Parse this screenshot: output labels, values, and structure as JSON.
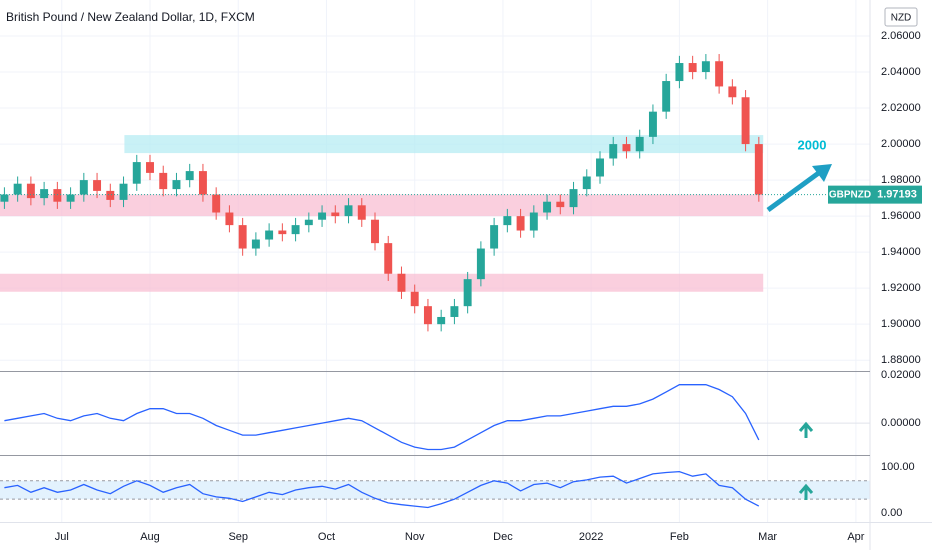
{
  "title": "British Pound / New Zealand Dollar, 1D, FXCM",
  "currency": "NZD",
  "annotation": "2000",
  "last_price": {
    "symbol": "GBPNZD",
    "value": 1.97193
  },
  "chart_data": [
    {
      "type": "candlestick",
      "up_color": "#26a69a",
      "down_color": "#ef5350",
      "x": [
        -0.65,
        -0.5,
        -0.35,
        -0.2,
        -0.05,
        0.1,
        0.25,
        0.4,
        0.55,
        0.7,
        0.85,
        1,
        1.15,
        1.3,
        1.45,
        1.6,
        1.75,
        1.9,
        2.05,
        2.2,
        2.35,
        2.5,
        2.65,
        2.8,
        2.95,
        3.1,
        3.25,
        3.4,
        3.55,
        3.7,
        3.85,
        4,
        4.15,
        4.3,
        4.45,
        4.6,
        4.75,
        4.9,
        5.05,
        5.2,
        5.35,
        5.5,
        5.65,
        5.8,
        5.95,
        6.1,
        6.25,
        6.4,
        6.55,
        6.7,
        6.85,
        7,
        7.15,
        7.3,
        7.45,
        7.6,
        7.75,
        7.9
      ],
      "open": [
        1.968,
        1.972,
        1.978,
        1.97,
        1.975,
        1.968,
        1.972,
        1.98,
        1.974,
        1.969,
        1.978,
        1.99,
        1.984,
        1.975,
        1.98,
        1.985,
        1.972,
        1.962,
        1.955,
        1.942,
        1.947,
        1.952,
        1.95,
        1.955,
        1.958,
        1.962,
        1.96,
        1.966,
        1.958,
        1.945,
        1.928,
        1.918,
        1.91,
        1.9,
        1.904,
        1.91,
        1.925,
        1.942,
        1.955,
        1.96,
        1.952,
        1.962,
        1.968,
        1.965,
        1.975,
        1.982,
        1.992,
        2.0,
        1.996,
        2.004,
        2.018,
        2.035,
        2.045,
        2.04,
        2.046,
        2.032,
        2.026,
        2.0
      ],
      "high": [
        1.976,
        1.982,
        1.982,
        1.979,
        1.979,
        1.976,
        1.984,
        1.984,
        1.978,
        1.982,
        1.994,
        1.994,
        1.988,
        1.984,
        1.989,
        1.989,
        1.976,
        1.966,
        1.959,
        1.951,
        1.956,
        1.956,
        1.959,
        1.962,
        1.966,
        1.966,
        1.97,
        1.97,
        1.962,
        1.949,
        1.932,
        1.922,
        1.914,
        1.908,
        1.914,
        1.929,
        1.946,
        1.959,
        1.964,
        1.964,
        1.966,
        1.972,
        1.972,
        1.979,
        1.986,
        1.996,
        2.004,
        2.004,
        2.008,
        2.022,
        2.039,
        2.049,
        2.049,
        2.05,
        2.05,
        2.036,
        2.03,
        2.004
      ],
      "low": [
        1.964,
        1.968,
        1.966,
        1.966,
        1.964,
        1.964,
        1.968,
        1.97,
        1.965,
        1.965,
        1.974,
        1.98,
        1.971,
        1.971,
        1.976,
        1.968,
        1.958,
        1.951,
        1.938,
        1.938,
        1.943,
        1.946,
        1.946,
        1.951,
        1.954,
        1.956,
        1.956,
        1.954,
        1.941,
        1.924,
        1.914,
        1.906,
        1.896,
        1.896,
        1.9,
        1.906,
        1.921,
        1.938,
        1.951,
        1.948,
        1.948,
        1.958,
        1.961,
        1.961,
        1.971,
        1.978,
        1.988,
        1.992,
        1.992,
        2.0,
        2.014,
        2.031,
        2.036,
        2.036,
        2.028,
        2.022,
        1.996,
        1.968
      ],
      "close": [
        1.972,
        1.978,
        1.97,
        1.975,
        1.968,
        1.972,
        1.98,
        1.974,
        1.969,
        1.978,
        1.99,
        1.984,
        1.975,
        1.98,
        1.985,
        1.972,
        1.962,
        1.955,
        1.942,
        1.947,
        1.952,
        1.95,
        1.955,
        1.958,
        1.962,
        1.96,
        1.966,
        1.958,
        1.945,
        1.928,
        1.918,
        1.91,
        1.9,
        1.904,
        1.91,
        1.925,
        1.942,
        1.955,
        1.96,
        1.952,
        1.962,
        1.968,
        1.965,
        1.975,
        1.982,
        1.992,
        2.0,
        1.996,
        2.004,
        2.018,
        2.035,
        2.045,
        2.04,
        2.046,
        2.032,
        2.026,
        2.0,
        1.972
      ],
      "zones": [
        {
          "low": 1.995,
          "high": 2.005,
          "x0": 0.71,
          "x1": 7.95,
          "color": "#b2ebf2"
        },
        {
          "low": 1.96,
          "high": 1.972,
          "x0": -0.7,
          "x1": 7.95,
          "color": "#f8bbd0"
        },
        {
          "low": 1.918,
          "high": 1.928,
          "x0": -0.7,
          "x1": 7.95,
          "color": "#f8bbd0"
        }
      ],
      "xlim": [
        -0.7,
        9.16
      ],
      "xticks": [
        {
          "value": 0,
          "label": "Jul"
        },
        {
          "value": 1,
          "label": "Aug"
        },
        {
          "value": 2,
          "label": "Sep"
        },
        {
          "value": 3,
          "label": "Oct"
        },
        {
          "value": 4,
          "label": "Nov"
        },
        {
          "value": 5,
          "label": "Dec"
        },
        {
          "value": 6,
          "label": "2022"
        },
        {
          "value": 7,
          "label": "Feb"
        },
        {
          "value": 8,
          "label": "Mar"
        },
        {
          "value": 9,
          "label": "Apr"
        }
      ],
      "ylim": [
        1.874,
        2.08
      ],
      "yticks": [
        {
          "value": 1.88,
          "label": "1.88000"
        },
        {
          "value": 1.9,
          "label": "1.90000"
        },
        {
          "value": 1.92,
          "label": "1.92000"
        },
        {
          "value": 1.94,
          "label": "1.94000"
        },
        {
          "value": 1.96,
          "label": "1.96000"
        },
        {
          "value": 1.98,
          "label": "1.98000"
        },
        {
          "value": 2.0,
          "label": "2.00000"
        },
        {
          "value": 2.02,
          "label": "2.02000"
        },
        {
          "value": 2.04,
          "label": "2.04000"
        },
        {
          "value": 2.06,
          "label": "2.06000"
        }
      ]
    },
    {
      "type": "line",
      "color": "#2962ff",
      "values": [
        0.001,
        0.002,
        0.003,
        0.004,
        0.002,
        0.001,
        0.003,
        0.004,
        0.002,
        0.001,
        0.004,
        0.006,
        0.006,
        0.004,
        0.004,
        0.002,
        -0.001,
        -0.003,
        -0.005,
        -0.005,
        -0.004,
        -0.003,
        -0.002,
        -0.001,
        0.0,
        0.001,
        0.002,
        0.001,
        -0.002,
        -0.005,
        -0.008,
        -0.01,
        -0.011,
        -0.011,
        -0.01,
        -0.007,
        -0.004,
        -0.001,
        0.001,
        0.001,
        0.002,
        0.003,
        0.003,
        0.004,
        0.005,
        0.006,
        0.007,
        0.007,
        0.008,
        0.01,
        0.013,
        0.016,
        0.016,
        0.016,
        0.014,
        0.011,
        0.004,
        -0.007
      ],
      "ylim": [
        -0.0133,
        0.0213
      ],
      "yticks": [
        {
          "value": 0,
          "label": "0.00000"
        },
        {
          "value": 0.02,
          "label": "0.02000"
        }
      ]
    },
    {
      "type": "line",
      "color": "#2962ff",
      "values": [
        55,
        60,
        45,
        55,
        45,
        50,
        62,
        50,
        42,
        58,
        70,
        60,
        45,
        55,
        62,
        42,
        35,
        32,
        25,
        35,
        45,
        40,
        50,
        55,
        58,
        52,
        62,
        45,
        32,
        22,
        18,
        15,
        12,
        20,
        30,
        45,
        60,
        70,
        65,
        48,
        62,
        65,
        55,
        68,
        72,
        78,
        80,
        65,
        75,
        85,
        88,
        90,
        80,
        85,
        60,
        55,
        30,
        15
      ],
      "levels": [
        30,
        70
      ],
      "ylim": [
        -19.6,
        123.9
      ],
      "yticks": [
        {
          "value": 0,
          "label": "0.00"
        },
        {
          "value": 100,
          "label": "100.00"
        }
      ]
    }
  ]
}
